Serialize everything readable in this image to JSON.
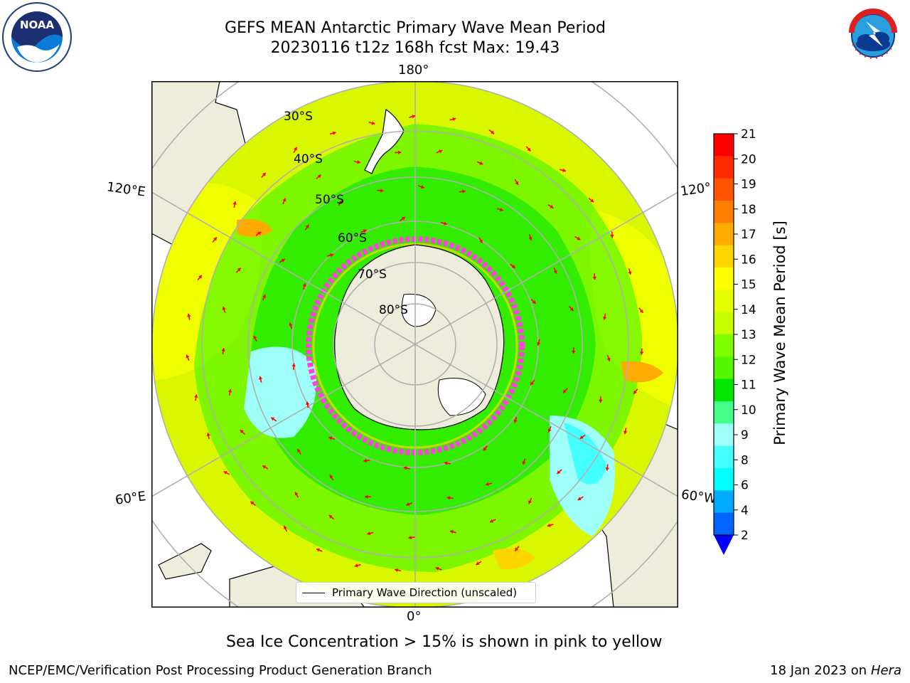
{
  "header": {
    "title_line1": "GEFS MEAN Antarctic Primary Wave Mean Period",
    "title_line2": "20230116 t12z 168h fcst   Max: 19.43"
  },
  "logos": {
    "left": "noaa-logo",
    "right": "national-weather-service-logo"
  },
  "map": {
    "projection": "south-polar-stereographic",
    "longitude_labels": {
      "top": "180°",
      "bottom": "0°",
      "left_upper": "120°E",
      "left_lower": "60°E",
      "right_upper": "120°",
      "right_lower": "60°W"
    },
    "latitude_labels": [
      "30°S",
      "40°S",
      "50°S",
      "60°S",
      "70°S",
      "80°S"
    ],
    "legend_label": "Primary Wave Direction (unscaled)",
    "colors": {
      "land": "#eeecda",
      "ice_edge": "#ff44dd",
      "arrow": "#ff0000",
      "gridline": "#b0b0b0"
    }
  },
  "colorbar": {
    "label": "Primary Wave Mean Period [s]",
    "ticks": [
      "21",
      "20",
      "19",
      "18",
      "17",
      "16",
      "15",
      "14",
      "13",
      "12",
      "11",
      "10",
      "9",
      "8",
      "6",
      "4",
      "2"
    ],
    "colors_top_to_bottom": [
      "#ff0000",
      "#ff2a00",
      "#ff5500",
      "#ff8000",
      "#ffaa00",
      "#ffd500",
      "#ffff00",
      "#e3ff00",
      "#c6ff00",
      "#7fff00",
      "#55f700",
      "#00e600",
      "#44ff88",
      "#9dfff7",
      "#44ffff",
      "#00ffff",
      "#00aaff",
      "#0064ff"
    ],
    "extend_color": "#0000ff"
  },
  "caption": "Sea Ice Concentration > 15% is shown in pink to yellow",
  "footer": {
    "left": "NCEP/EMC/Verification Post Processing Product Generation Branch",
    "date": "18 Jan 2023 on ",
    "host": "Hera"
  }
}
